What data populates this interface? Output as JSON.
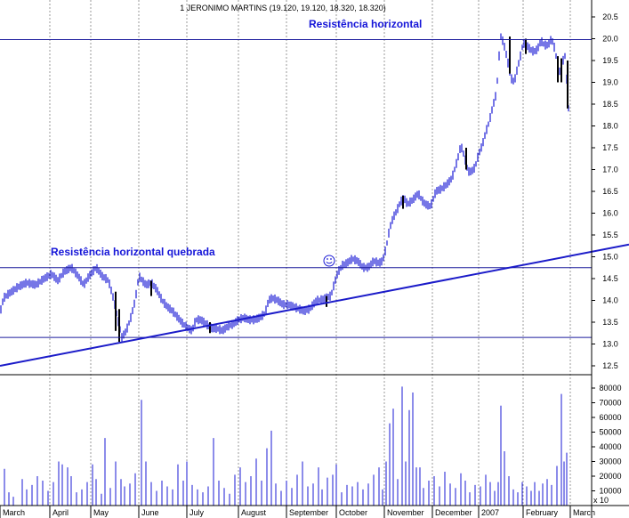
{
  "chart_data": {
    "type": "stock-bar-volume",
    "title": "1 JERONIMO MARTINS (19.120, 19.120, 18.320, 18.320)",
    "price_axis": {
      "min": 12.5,
      "max": 20.5,
      "step": 0.5,
      "tick_labels": [
        "20.5",
        "20.0",
        "19.5",
        "19.0",
        "18.5",
        "18.0",
        "17.5",
        "17.0",
        "16.5",
        "16.0",
        "15.5",
        "15.0",
        "14.5",
        "14.0",
        "13.5",
        "13.0",
        "12.5"
      ]
    },
    "volume_axis": {
      "min": 0,
      "max": 80000,
      "tick_labels": [
        "80000",
        "70000",
        "60000",
        "50000",
        "40000",
        "30000",
        "20000",
        "10000"
      ],
      "multiplier_label": "x 10"
    },
    "x_labels": [
      "March",
      "April",
      "May",
      "June",
      "July",
      "August",
      "September",
      "October",
      "November",
      "December",
      "2007",
      "February",
      "March"
    ],
    "price_path": [
      [
        0,
        13.7
      ],
      [
        4,
        14.05
      ],
      [
        10,
        14.15
      ],
      [
        20,
        14.3
      ],
      [
        30,
        14.4
      ],
      [
        40,
        14.35
      ],
      [
        50,
        14.5
      ],
      [
        58,
        14.6
      ],
      [
        65,
        14.45
      ],
      [
        72,
        14.65
      ],
      [
        80,
        14.75
      ],
      [
        88,
        14.55
      ],
      [
        94,
        14.35
      ],
      [
        100,
        14.55
      ],
      [
        108,
        14.75
      ],
      [
        115,
        14.55
      ],
      [
        122,
        14.45
      ],
      [
        128,
        14.0
      ],
      [
        132,
        13.6
      ],
      [
        137,
        13.15
      ],
      [
        142,
        13.3
      ],
      [
        147,
        13.6
      ],
      [
        152,
        14.0
      ],
      [
        156,
        14.55
      ],
      [
        160,
        14.45
      ],
      [
        164,
        14.35
      ],
      [
        170,
        14.4
      ],
      [
        176,
        14.25
      ],
      [
        182,
        14.0
      ],
      [
        188,
        13.85
      ],
      [
        194,
        13.75
      ],
      [
        200,
        13.6
      ],
      [
        206,
        13.45
      ],
      [
        212,
        13.35
      ],
      [
        216,
        13.3
      ],
      [
        220,
        13.55
      ],
      [
        226,
        13.55
      ],
      [
        232,
        13.45
      ],
      [
        238,
        13.35
      ],
      [
        244,
        13.35
      ],
      [
        250,
        13.3
      ],
      [
        256,
        13.4
      ],
      [
        262,
        13.45
      ],
      [
        268,
        13.55
      ],
      [
        274,
        13.6
      ],
      [
        280,
        13.55
      ],
      [
        286,
        13.55
      ],
      [
        292,
        13.6
      ],
      [
        298,
        13.7
      ],
      [
        302,
        14.0
      ],
      [
        306,
        14.05
      ],
      [
        312,
        14.0
      ],
      [
        318,
        13.9
      ],
      [
        324,
        13.9
      ],
      [
        330,
        13.85
      ],
      [
        336,
        13.8
      ],
      [
        342,
        13.75
      ],
      [
        348,
        13.8
      ],
      [
        352,
        13.9
      ],
      [
        356,
        14.0
      ],
      [
        360,
        14.0
      ],
      [
        366,
        14.05
      ],
      [
        372,
        14.1
      ],
      [
        376,
        14.4
      ],
      [
        380,
        14.65
      ],
      [
        385,
        14.8
      ],
      [
        390,
        14.85
      ],
      [
        396,
        14.95
      ],
      [
        402,
        14.9
      ],
      [
        408,
        14.75
      ],
      [
        414,
        14.75
      ],
      [
        420,
        14.9
      ],
      [
        426,
        14.85
      ],
      [
        430,
        14.9
      ],
      [
        434,
        15.2
      ],
      [
        438,
        15.65
      ],
      [
        442,
        15.9
      ],
      [
        446,
        16.05
      ],
      [
        450,
        16.25
      ],
      [
        454,
        16.35
      ],
      [
        458,
        16.2
      ],
      [
        464,
        16.3
      ],
      [
        470,
        16.45
      ],
      [
        474,
        16.3
      ],
      [
        478,
        16.2
      ],
      [
        484,
        16.15
      ],
      [
        490,
        16.5
      ],
      [
        496,
        16.55
      ],
      [
        502,
        16.65
      ],
      [
        508,
        16.8
      ],
      [
        514,
        17.2
      ],
      [
        518,
        17.55
      ],
      [
        522,
        17.3
      ],
      [
        526,
        16.95
      ],
      [
        530,
        16.95
      ],
      [
        534,
        17.05
      ],
      [
        538,
        17.35
      ],
      [
        542,
        17.55
      ],
      [
        546,
        17.85
      ],
      [
        550,
        18.1
      ],
      [
        554,
        18.45
      ],
      [
        558,
        18.75
      ],
      [
        561,
        19.6
      ],
      [
        563,
        20.05
      ],
      [
        566,
        19.9
      ],
      [
        570,
        19.55
      ],
      [
        574,
        19.1
      ],
      [
        578,
        19.0
      ],
      [
        582,
        19.35
      ],
      [
        585,
        19.6
      ],
      [
        588,
        19.9
      ],
      [
        592,
        19.85
      ],
      [
        596,
        19.75
      ],
      [
        600,
        19.7
      ],
      [
        604,
        19.75
      ],
      [
        608,
        19.95
      ],
      [
        612,
        19.85
      ],
      [
        616,
        19.85
      ],
      [
        620,
        20.0
      ],
      [
        623,
        19.8
      ],
      [
        626,
        19.5
      ],
      [
        629,
        19.25
      ],
      [
        632,
        19.45
      ],
      [
        635,
        19.6
      ],
      [
        638,
        18.8
      ],
      [
        639,
        18.4
      ]
    ],
    "sell_bars": [
      [
        130,
        14.2,
        13.3
      ],
      [
        134,
        13.8,
        13.05
      ],
      [
        170,
        14.45,
        14.1
      ],
      [
        236,
        13.5,
        13.25
      ],
      [
        367,
        14.1,
        13.85
      ],
      [
        453,
        16.4,
        16.1
      ],
      [
        524,
        17.5,
        17.0
      ],
      [
        573,
        20.05,
        19.2
      ],
      [
        591,
        20.0,
        19.65
      ],
      [
        627,
        19.6,
        19.0
      ],
      [
        631,
        19.55,
        19.0
      ],
      [
        638,
        19.5,
        18.4
      ]
    ],
    "volume_spikes": [
      [
        5,
        25000
      ],
      [
        10,
        9000
      ],
      [
        15,
        6000
      ],
      [
        25,
        18000
      ],
      [
        30,
        11000
      ],
      [
        36,
        14000
      ],
      [
        42,
        20000
      ],
      [
        48,
        17000
      ],
      [
        54,
        10000
      ],
      [
        60,
        16000
      ],
      [
        66,
        30000
      ],
      [
        70,
        28000
      ],
      [
        76,
        26000
      ],
      [
        80,
        20000
      ],
      [
        86,
        9000
      ],
      [
        92,
        11000
      ],
      [
        98,
        16000
      ],
      [
        104,
        28000
      ],
      [
        108,
        18000
      ],
      [
        114,
        8000
      ],
      [
        118,
        46000
      ],
      [
        124,
        12000
      ],
      [
        130,
        30000
      ],
      [
        136,
        18000
      ],
      [
        140,
        13000
      ],
      [
        146,
        15000
      ],
      [
        152,
        22000
      ],
      [
        159,
        72000
      ],
      [
        164,
        30000
      ],
      [
        170,
        16000
      ],
      [
        176,
        10000
      ],
      [
        182,
        17000
      ],
      [
        188,
        13000
      ],
      [
        194,
        11000
      ],
      [
        200,
        28000
      ],
      [
        206,
        17000
      ],
      [
        210,
        30000
      ],
      [
        216,
        14000
      ],
      [
        222,
        11000
      ],
      [
        228,
        9000
      ],
      [
        234,
        13000
      ],
      [
        240,
        46000
      ],
      [
        246,
        17000
      ],
      [
        252,
        12000
      ],
      [
        258,
        8000
      ],
      [
        264,
        21000
      ],
      [
        270,
        26000
      ],
      [
        276,
        16000
      ],
      [
        282,
        20000
      ],
      [
        288,
        32000
      ],
      [
        294,
        17000
      ],
      [
        300,
        39000
      ],
      [
        305,
        51000
      ],
      [
        310,
        15000
      ],
      [
        316,
        10000
      ],
      [
        322,
        17000
      ],
      [
        328,
        12000
      ],
      [
        334,
        21000
      ],
      [
        340,
        30000
      ],
      [
        346,
        13000
      ],
      [
        352,
        15000
      ],
      [
        358,
        26000
      ],
      [
        362,
        11000
      ],
      [
        368,
        19000
      ],
      [
        374,
        21000
      ],
      [
        378,
        28000
      ],
      [
        384,
        9000
      ],
      [
        390,
        14000
      ],
      [
        396,
        13000
      ],
      [
        402,
        16000
      ],
      [
        408,
        11000
      ],
      [
        414,
        15000
      ],
      [
        420,
        21000
      ],
      [
        426,
        26000
      ],
      [
        430,
        11000
      ],
      [
        434,
        30000
      ],
      [
        438,
        56000
      ],
      [
        442,
        66000
      ],
      [
        447,
        18000
      ],
      [
        452,
        81000
      ],
      [
        456,
        30000
      ],
      [
        460,
        65000
      ],
      [
        464,
        77000
      ],
      [
        468,
        26000
      ],
      [
        472,
        26000
      ],
      [
        476,
        12000
      ],
      [
        482,
        17000
      ],
      [
        488,
        20000
      ],
      [
        494,
        13000
      ],
      [
        500,
        23000
      ],
      [
        506,
        15000
      ],
      [
        512,
        12000
      ],
      [
        518,
        22000
      ],
      [
        523,
        17000
      ],
      [
        528,
        9000
      ],
      [
        534,
        14000
      ],
      [
        540,
        13000
      ],
      [
        546,
        21000
      ],
      [
        551,
        16000
      ],
      [
        556,
        10000
      ],
      [
        560,
        16000
      ],
      [
        563,
        68000
      ],
      [
        567,
        37000
      ],
      [
        572,
        20000
      ],
      [
        577,
        11000
      ],
      [
        582,
        9000
      ],
      [
        587,
        16000
      ],
      [
        592,
        13000
      ],
      [
        597,
        10000
      ],
      [
        601,
        16000
      ],
      [
        606,
        10000
      ],
      [
        610,
        15000
      ],
      [
        615,
        18000
      ],
      [
        620,
        14000
      ],
      [
        626,
        27000
      ],
      [
        631,
        76000
      ],
      [
        634,
        30000
      ],
      [
        637,
        36000
      ]
    ],
    "lines": [
      {
        "label": "Resistência horizontal",
        "price": 19.98
      },
      {
        "label": "Resistência horizontal quebrada",
        "price": 14.75
      },
      {
        "label": "",
        "price": 13.15
      },
      {
        "label": "",
        "kind": "trend",
        "from": [
          0,
          12.5
        ],
        "to": [
          707,
          15.28
        ]
      }
    ],
    "annotations": {
      "upper": "Resistência horizontal",
      "lower": "Resistência horizontal quebrada",
      "smiley": "☺"
    },
    "colors": {
      "up": "#1a1ad6",
      "down": "#000000",
      "grid": "#9a9a9a",
      "annotation": "#1515d8"
    }
  }
}
